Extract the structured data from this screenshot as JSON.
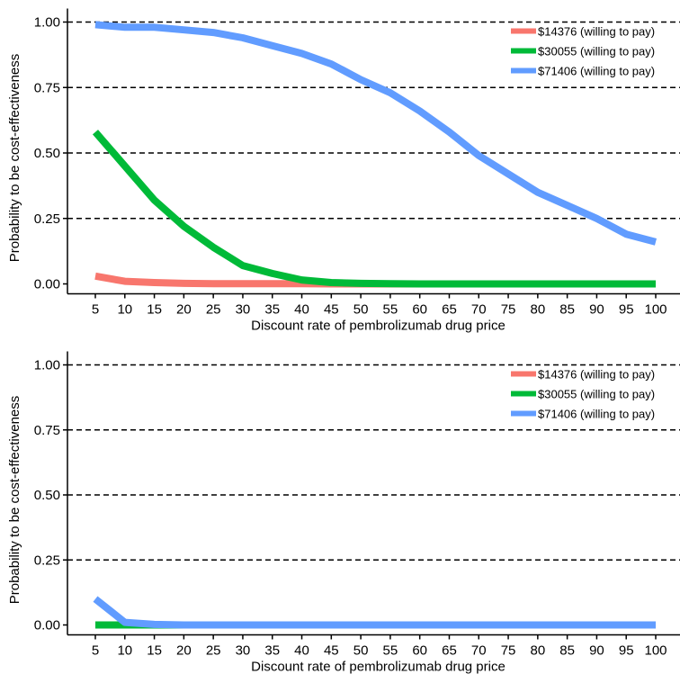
{
  "chart_data": [
    {
      "type": "line",
      "xlabel": "Discount rate of pembrolizumab drug price",
      "ylabel": "Probability to be cost-effectiveness",
      "x": [
        5,
        10,
        15,
        20,
        25,
        30,
        35,
        40,
        45,
        50,
        55,
        60,
        65,
        70,
        75,
        80,
        85,
        90,
        95,
        100
      ],
      "ylim": [
        0,
        1
      ],
      "yticks": [
        "0.00",
        "0.25",
        "0.50",
        "0.75",
        "1.00"
      ],
      "grid": "dashed horizontal at each y tick",
      "legend_position": "top-right",
      "series": [
        {
          "name": "$14376 (willing to pay)",
          "color": "#f8766d",
          "values": [
            0.03,
            0.01,
            0.005,
            0.002,
            0.001,
            0.001,
            0.001,
            0.001,
            0,
            0,
            0,
            0,
            0,
            0,
            0,
            0,
            0,
            0,
            0,
            0
          ]
        },
        {
          "name": "$30055 (willing to pay)",
          "color": "#00ba38",
          "values": [
            0.58,
            0.45,
            0.32,
            0.22,
            0.14,
            0.07,
            0.04,
            0.015,
            0.005,
            0.002,
            0.001,
            0,
            0,
            0,
            0,
            0,
            0,
            0,
            0,
            0
          ]
        },
        {
          "name": "$71406 (willing to pay)",
          "color": "#619cff",
          "values": [
            0.99,
            0.98,
            0.98,
            0.97,
            0.96,
            0.94,
            0.91,
            0.88,
            0.84,
            0.78,
            0.73,
            0.66,
            0.58,
            0.49,
            0.42,
            0.35,
            0.3,
            0.25,
            0.19,
            0.16
          ]
        }
      ]
    },
    {
      "type": "line",
      "xlabel": "Discount rate of pembrolizumab drug price",
      "ylabel": "Probability to be cost-effectiveness",
      "x": [
        5,
        10,
        15,
        20,
        25,
        30,
        35,
        40,
        45,
        50,
        55,
        60,
        65,
        70,
        75,
        80,
        85,
        90,
        95,
        100
      ],
      "ylim": [
        0,
        1
      ],
      "yticks": [
        "0.00",
        "0.25",
        "0.50",
        "0.75",
        "1.00"
      ],
      "grid": "dashed horizontal at each y tick",
      "legend_position": "top-right",
      "series": [
        {
          "name": "$14376 (willing to pay)",
          "color": "#f8766d",
          "values": [
            0,
            0,
            0,
            0,
            0,
            0,
            0,
            0,
            0,
            0,
            0,
            0,
            0,
            0,
            0,
            0,
            0,
            0,
            0,
            0
          ]
        },
        {
          "name": "$30055 (willing to pay)",
          "color": "#00ba38",
          "values": [
            0,
            0,
            0,
            0,
            0,
            0,
            0,
            0,
            0,
            0,
            0,
            0,
            0,
            0,
            0,
            0,
            0,
            0,
            0,
            0
          ]
        },
        {
          "name": "$71406 (willing to pay)",
          "color": "#619cff",
          "values": [
            0.1,
            0.01,
            0.002,
            0,
            0,
            0,
            0,
            0,
            0,
            0,
            0,
            0,
            0,
            0,
            0,
            0,
            0,
            0,
            0,
            0
          ]
        }
      ]
    }
  ]
}
